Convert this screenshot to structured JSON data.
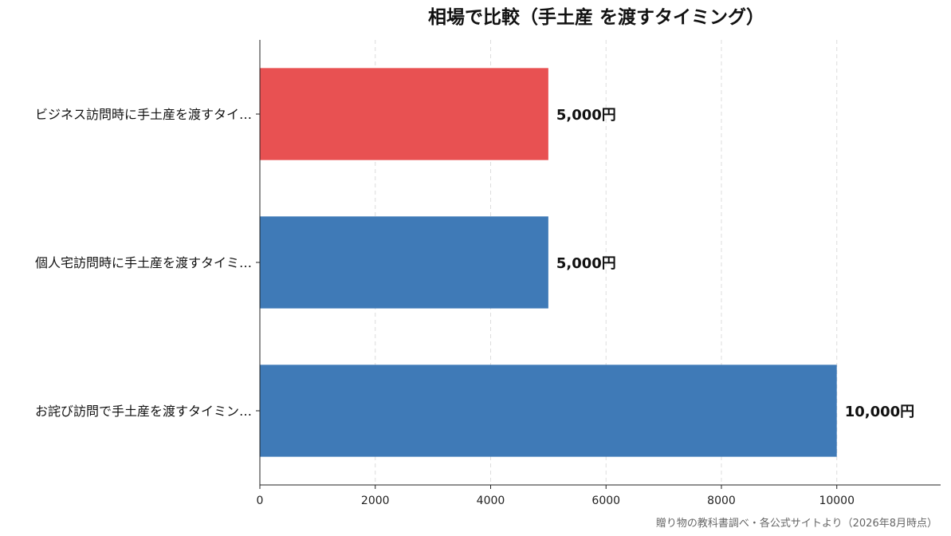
{
  "chart_data": {
    "type": "bar",
    "orientation": "horizontal",
    "title": "相場で比較（手土産 を渡すタイミング）",
    "categories": [
      "ビジネス訪問時に手土産を渡すタイ…",
      "個人宅訪問時に手土産を渡すタイミ…",
      "お詫び訪問で手土産を渡すタイミン…"
    ],
    "values": [
      5000,
      5000,
      10000
    ],
    "value_labels": [
      "5,000円",
      "5,000円",
      "10,000円"
    ],
    "bar_colors": [
      "#e85152",
      "#3f7ab7",
      "#3f7ab7"
    ],
    "x_ticks": [
      0,
      2000,
      4000,
      6000,
      8000,
      10000
    ],
    "xlim": [
      0,
      11800
    ],
    "grid": "vertical dashed",
    "xlabel": "",
    "ylabel": ""
  },
  "source": "贈り物の教科書調べ・各公式サイトより（2026年8月時点）"
}
